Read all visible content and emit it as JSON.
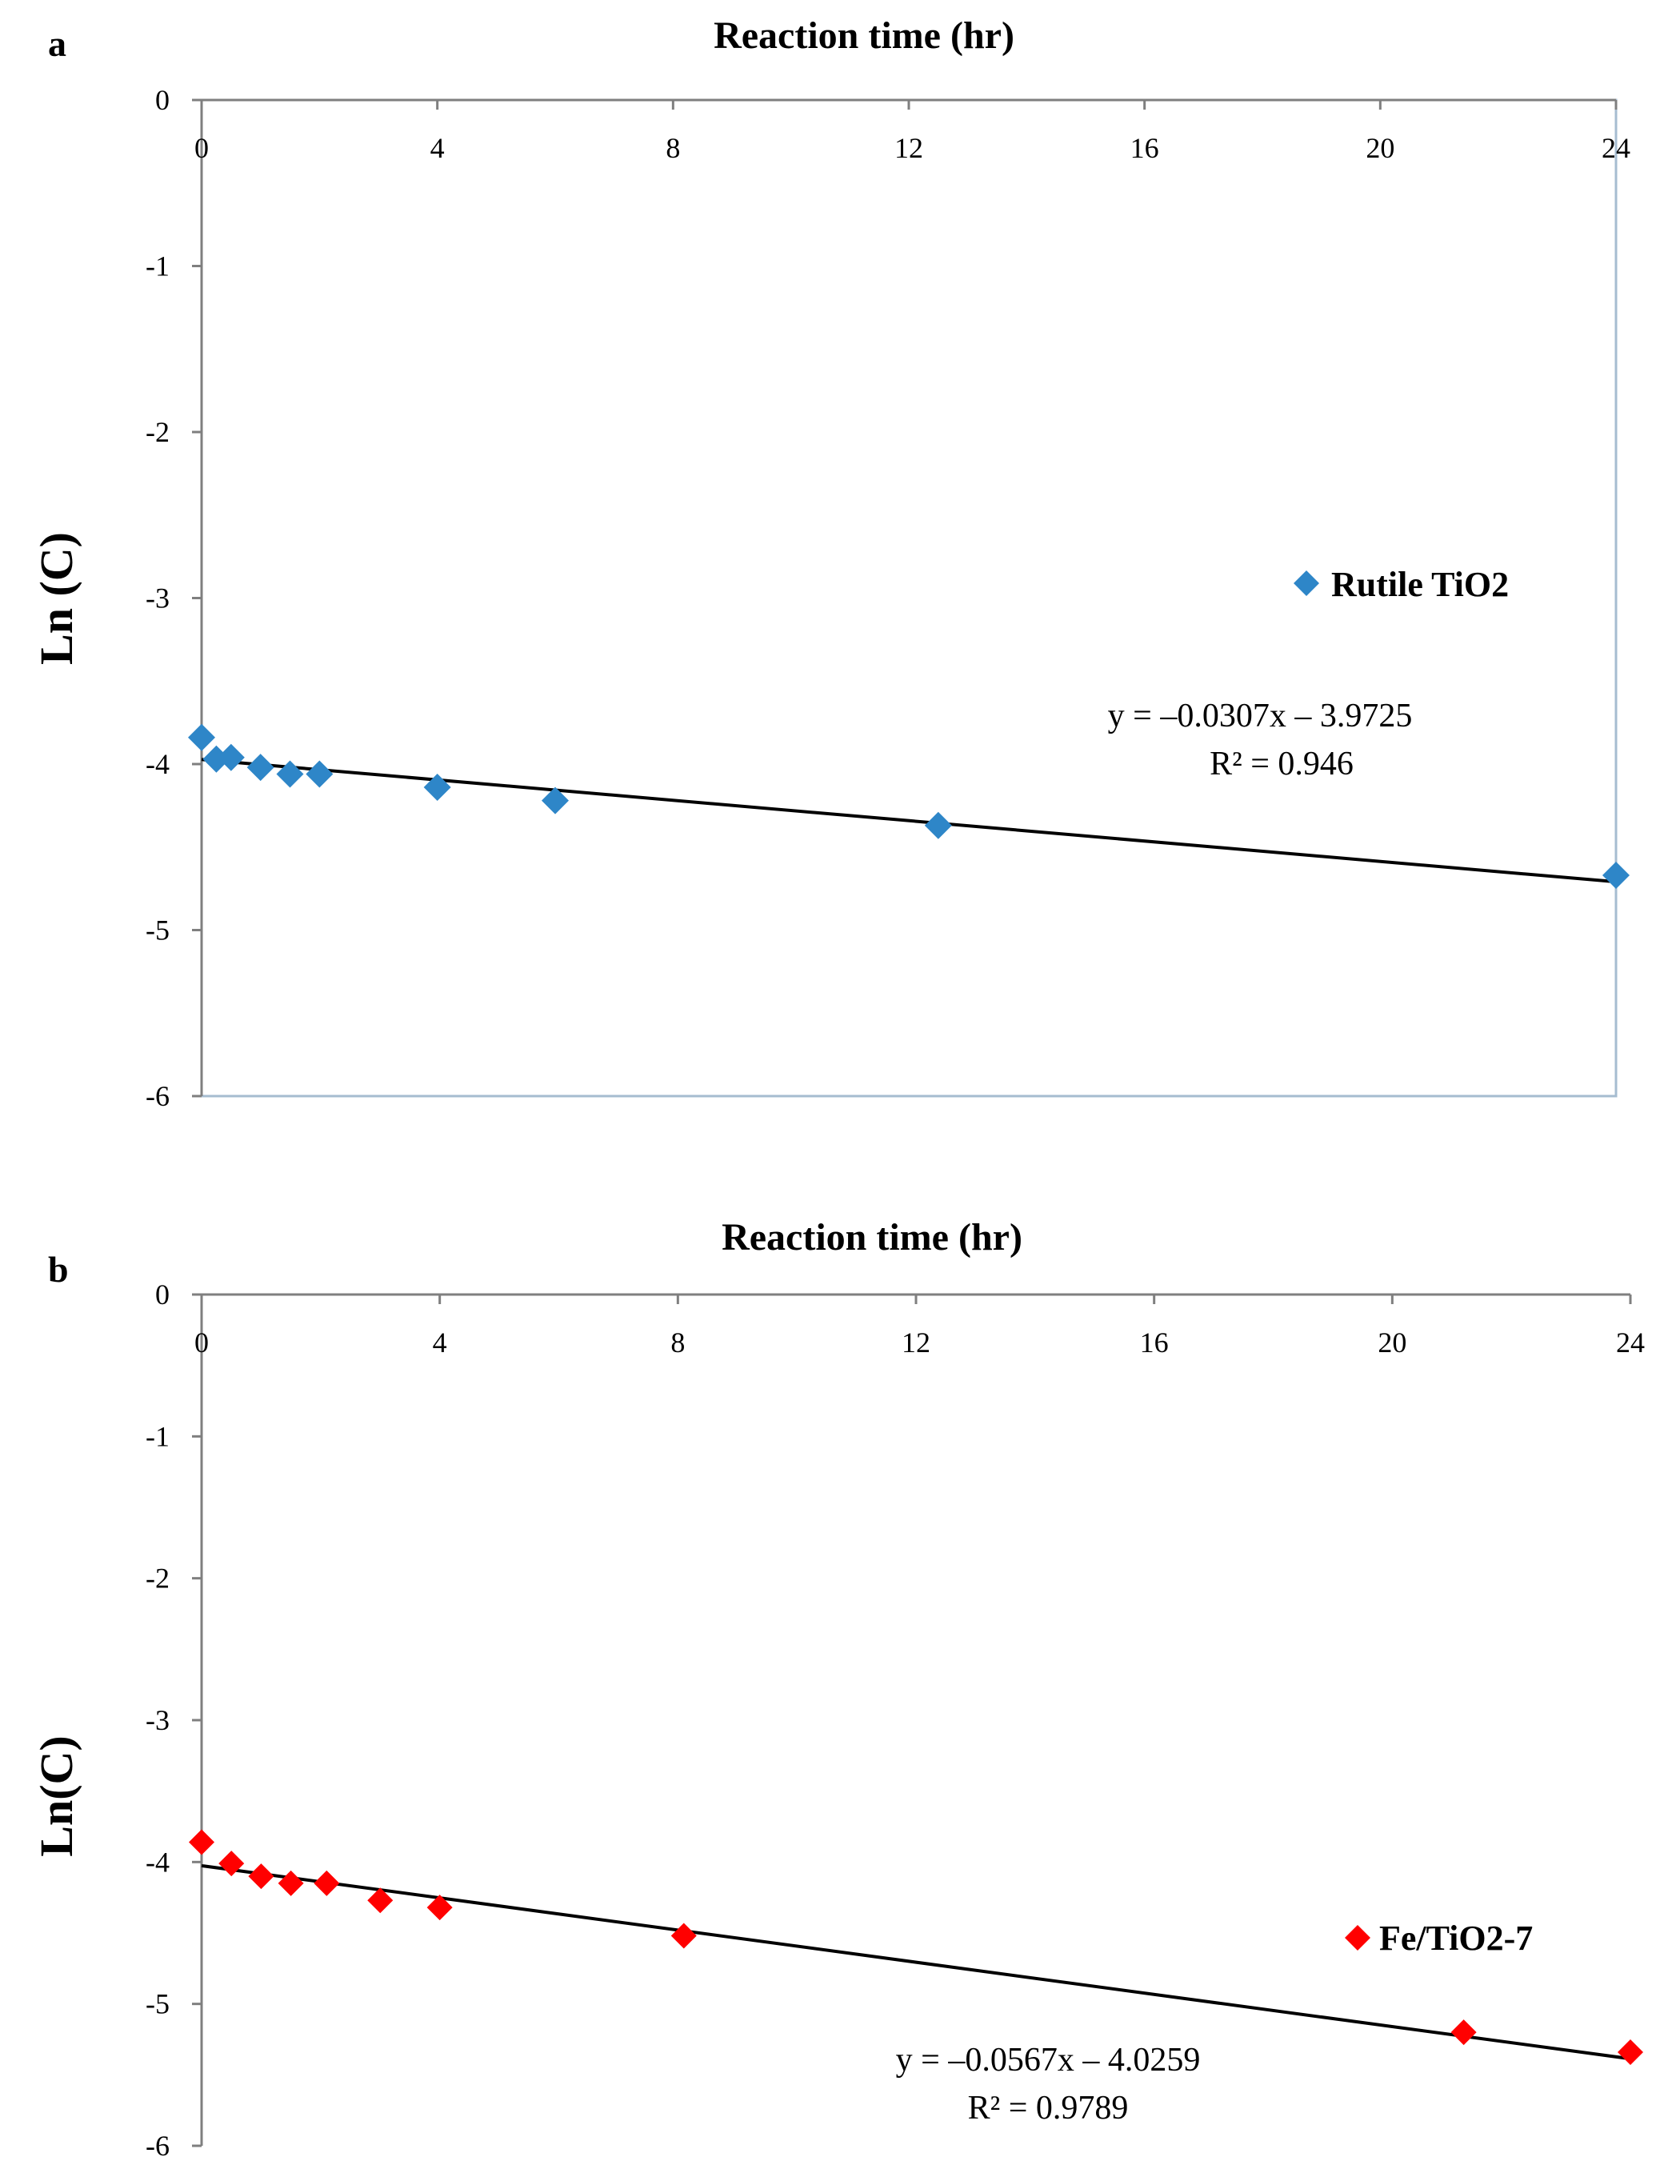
{
  "chart_data": [
    {
      "type": "scatter",
      "panel_label": "a",
      "title": "Reaction time (hr)",
      "xlabel": "Reaction time (hr)",
      "ylabel": "Ln (C)",
      "xlim": [
        0,
        24
      ],
      "ylim": [
        -6,
        0
      ],
      "xticks": [
        0,
        4,
        8,
        12,
        16,
        20,
        24
      ],
      "yticks": [
        0,
        -1,
        -2,
        -3,
        -4,
        -5,
        -6
      ],
      "x_axis_position": "top",
      "legend_position": "right",
      "series": [
        {
          "name": "Rutile TiO2",
          "color": "#2E86C8",
          "marker": "diamond",
          "x": [
            0,
            0.25,
            0.5,
            1,
            1.5,
            2,
            4,
            6,
            12.5,
            24
          ],
          "y": [
            -3.84,
            -3.97,
            -3.96,
            -4.02,
            -4.06,
            -4.06,
            -4.14,
            -4.22,
            -4.37,
            -4.67
          ]
        }
      ],
      "trendline": {
        "slope": -0.0307,
        "intercept": -3.9725,
        "color": "#000000"
      },
      "equation": "y = –0.0307x – 3.9725",
      "r2": "R² = 0.946"
    },
    {
      "type": "scatter",
      "panel_label": "b",
      "title": "Reaction time (hr)",
      "xlabel": "Reaction time (hr)",
      "ylabel": "Ln(C)",
      "xlim": [
        0,
        24
      ],
      "ylim": [
        -6,
        0
      ],
      "xticks": [
        0,
        4,
        8,
        12,
        16,
        20,
        24
      ],
      "yticks": [
        0,
        -1,
        -2,
        -3,
        -4,
        -5,
        -6
      ],
      "x_axis_position": "top",
      "legend_position": "bottom-right",
      "series": [
        {
          "name": "Fe/TiO2-7",
          "color": "#FF0000",
          "marker": "diamond",
          "x": [
            0,
            0.5,
            1,
            1.5,
            2.1,
            3,
            4,
            8.1,
            21.2,
            24
          ],
          "y": [
            -3.86,
            -4.01,
            -4.1,
            -4.15,
            -4.15,
            -4.27,
            -4.32,
            -4.52,
            -5.2,
            -5.34
          ]
        }
      ],
      "trendline": {
        "slope": -0.0567,
        "intercept": -4.0259,
        "color": "#000000"
      },
      "equation": "y = –0.0567x – 4.0259",
      "r2": "R² = 0.9789"
    }
  ]
}
